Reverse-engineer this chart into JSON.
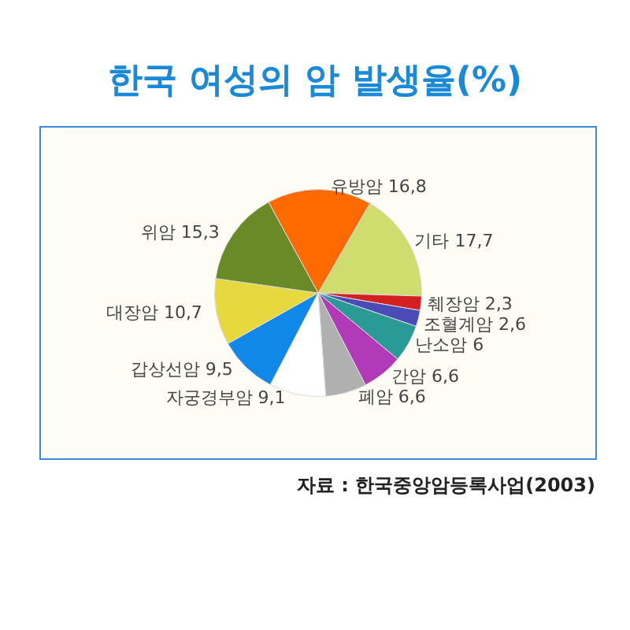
{
  "chart_data": {
    "type": "pie",
    "title": "한국 여성의 암 발생율(%)",
    "categories": [
      "기타",
      "췌장암",
      "조혈계암",
      "난소암",
      "간암",
      "폐암",
      "자궁경부암",
      "갑상선암",
      "대장암",
      "위암",
      "유방암"
    ],
    "values": [
      17.7,
      2.3,
      2.6,
      6,
      6.6,
      6.6,
      9.1,
      9.5,
      10.7,
      15.3,
      16.8
    ],
    "value_labels": [
      "17,7",
      "2,3",
      "2,6",
      "6",
      "6,6",
      "6,6",
      "9,1",
      "9,5",
      "10,7",
      "15,3",
      "16,8"
    ],
    "colors": [
      "#cfdc6e",
      "#d42020",
      "#4b4bb8",
      "#2a9a96",
      "#b03ab8",
      "#b0b0b0",
      "#ffffff",
      "#1088e8",
      "#e8d840",
      "#6a8a28",
      "#ff6a00"
    ],
    "annotations": [
      "자료 : 한국중앙암등록사업(2003)"
    ]
  }
}
